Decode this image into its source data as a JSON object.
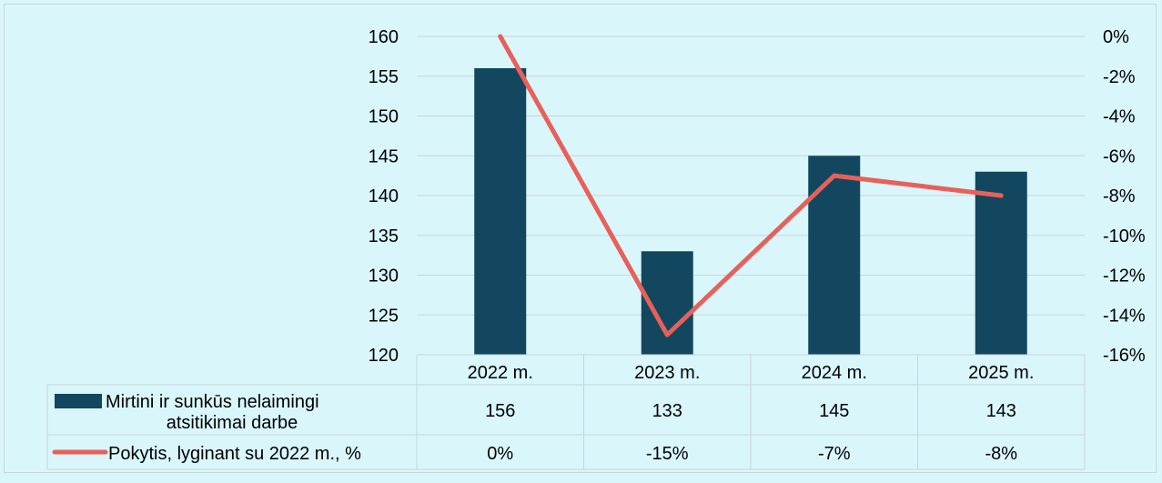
{
  "chart_data": {
    "type": "bar",
    "categories": [
      "2022 m.",
      "2023 m.",
      "2024 m.",
      "2025 m."
    ],
    "y_left": {
      "min": 120,
      "max": 160,
      "step": 5,
      "ticks": [
        "160",
        "155",
        "150",
        "145",
        "140",
        "135",
        "130",
        "125",
        "120"
      ]
    },
    "y_right": {
      "min": -16,
      "max": 0,
      "step": 2,
      "ticks": [
        "0%",
        "-2%",
        "-4%",
        "-6%",
        "-8%",
        "-10%",
        "-12%",
        "-14%",
        "-16%"
      ]
    },
    "grid": true,
    "legend": "data-table",
    "series": [
      {
        "name_lines": [
          "Mirtini ir sunkūs nelaimingi",
          "atsitikimai darbe"
        ],
        "type": "bar",
        "axis": "left",
        "color": "#12475f",
        "values": [
          156,
          133,
          145,
          143
        ],
        "labels": [
          "156",
          "133",
          "145",
          "143"
        ]
      },
      {
        "name": "Pokytis, lyginant su 2022 m., %",
        "type": "line",
        "axis": "right",
        "color": "#e8605a",
        "values": [
          0,
          -15,
          -7,
          -8
        ],
        "labels": [
          "0%",
          "-15%",
          "-7%",
          "-8%"
        ]
      }
    ]
  }
}
